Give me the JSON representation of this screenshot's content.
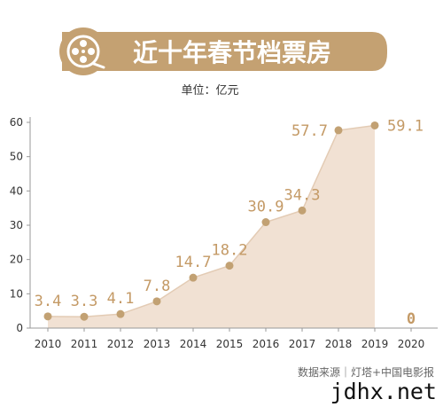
{
  "title": "近十年春节档票房",
  "unit": "单位：亿元",
  "source": "数据来源｜灯塔+中国电影报",
  "watermark": "jdhx.net",
  "colors": {
    "banner": "#c4a172",
    "area": "#f1e1d3",
    "line": "#e3cbb4",
    "point": "#c2a173",
    "label": "#c49a66",
    "zero_label": "#c00000"
  },
  "chart_data": {
    "type": "area",
    "categories": [
      "2010",
      "2011",
      "2012",
      "2013",
      "2014",
      "2015",
      "2016",
      "2017",
      "2018",
      "2019",
      "2020"
    ],
    "values": [
      3.4,
      3.3,
      4.1,
      7.8,
      14.7,
      18.2,
      30.9,
      34.3,
      57.7,
      59.1,
      0
    ],
    "data_labels": [
      "3.4",
      "3.3",
      "4.1",
      "7.8",
      "14.7",
      "18.2",
      "30.9",
      "34.3",
      "57.7",
      "59.1",
      "0"
    ],
    "yticks": [
      "0",
      "10",
      "20",
      "30",
      "40",
      "50",
      "60"
    ],
    "ylim": [
      0,
      60
    ],
    "grid": false
  }
}
